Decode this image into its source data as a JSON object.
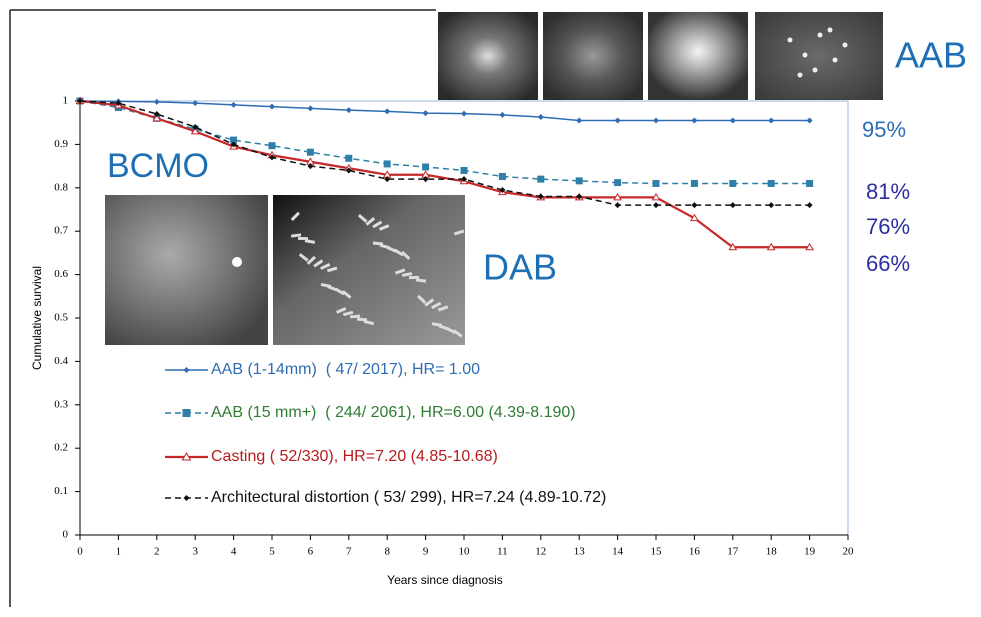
{
  "chart_data": {
    "type": "line",
    "x_label": "Years since diagnosis",
    "y_label": "Cumulative survival",
    "x": [
      0,
      1,
      2,
      3,
      4,
      5,
      6,
      7,
      8,
      9,
      10,
      11,
      12,
      13,
      14,
      15,
      16,
      17,
      18,
      19
    ],
    "xlim": [
      0,
      20
    ],
    "xticks": [
      0,
      1,
      2,
      3,
      4,
      5,
      6,
      7,
      8,
      9,
      10,
      11,
      12,
      13,
      14,
      15,
      16,
      17,
      18,
      19,
      20
    ],
    "ylim": [
      0,
      1
    ],
    "yticks": [
      0,
      0.1,
      0.2,
      0.3,
      0.4,
      0.5,
      0.6,
      0.7,
      0.8,
      0.9,
      1
    ],
    "series": [
      {
        "name": "AAB (1-14mm)  ( 47/ 2017), HR= 1.00",
        "color": "#2e6db4",
        "legend_text_color": "#2e6db4",
        "marker": "diamond",
        "dash": false,
        "values": [
          1,
          0.999,
          0.998,
          0.995,
          0.991,
          0.987,
          0.983,
          0.979,
          0.976,
          0.972,
          0.971,
          0.968,
          0.963,
          0.955,
          0.955,
          0.955,
          0.955,
          0.955,
          0.955,
          0.955
        ]
      },
      {
        "name": "AAB (15 mm+)  ( 244/ 2061), HR=6.00 (4.39-8.190)",
        "color": "#2f7fa8",
        "legend_text_color": "#2e7d32",
        "marker": "square",
        "dash": true,
        "values": [
          1,
          0.985,
          0.96,
          0.935,
          0.91,
          0.897,
          0.882,
          0.868,
          0.855,
          0.848,
          0.84,
          0.826,
          0.82,
          0.816,
          0.812,
          0.81,
          0.81,
          0.81,
          0.81,
          0.81
        ]
      },
      {
        "name": "Casting ( 52/330), HR=7.20 (4.85-10.68)",
        "color": "#c62828",
        "legend_text_color": "#b71c1c",
        "marker": "triangle",
        "dash": false,
        "values": [
          1,
          0.99,
          0.96,
          0.93,
          0.895,
          0.875,
          0.86,
          0.845,
          0.83,
          0.83,
          0.815,
          0.79,
          0.778,
          0.778,
          0.778,
          0.778,
          0.73,
          0.663,
          0.663,
          0.663
        ]
      },
      {
        "name": "Architectural distortion ( 53/ 299), HR=7.24 (4.89-10.72)",
        "color": "#111111",
        "legend_text_color": "#111111",
        "marker": "diamond",
        "dash": true,
        "values": [
          1,
          0.995,
          0.97,
          0.94,
          0.9,
          0.87,
          0.85,
          0.84,
          0.82,
          0.82,
          0.82,
          0.795,
          0.78,
          0.78,
          0.76,
          0.76,
          0.76,
          0.76,
          0.76,
          0.76
        ]
      }
    ],
    "annotations": {
      "aab": "AAB",
      "bcmo": "BCMO",
      "dab": "DAB",
      "p95": "95%",
      "p81": "81%",
      "p76": "76%",
      "p66": "66%"
    }
  }
}
